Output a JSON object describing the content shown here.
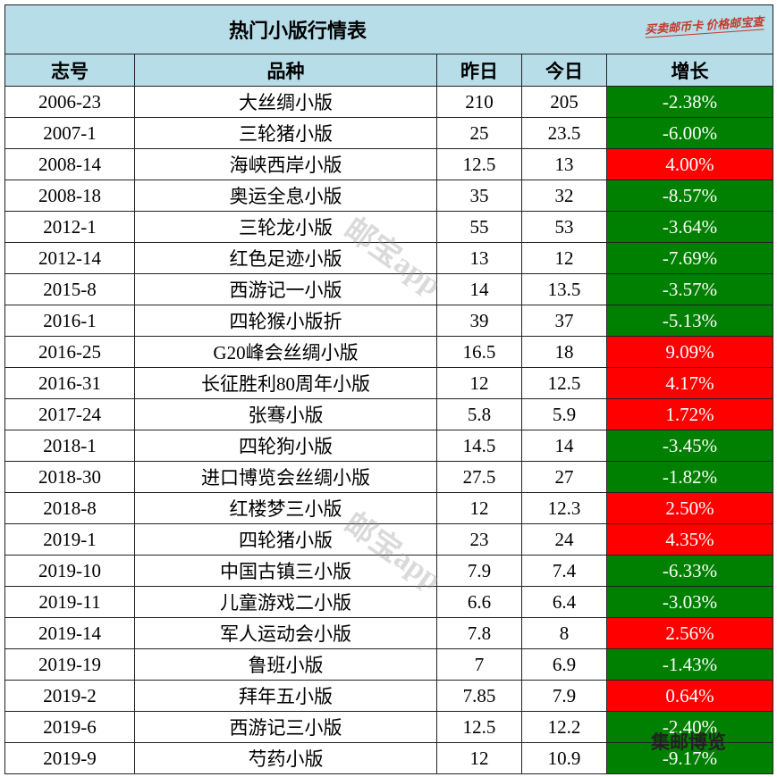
{
  "header": {
    "title": "热门小版行情表",
    "stamp": "买卖邮币卡 价格邮宝查"
  },
  "table": {
    "columns": [
      "志号",
      "品种",
      "昨日",
      "今日",
      "增长"
    ],
    "rows": [
      [
        "2006-23",
        "大丝绸小版",
        "210",
        "205",
        "-2.38%"
      ],
      [
        "2007-1",
        "三轮猪小版",
        "25",
        "23.5",
        "-6.00%"
      ],
      [
        "2008-14",
        "海峡西岸小版",
        "12.5",
        "13",
        "4.00%"
      ],
      [
        "2008-18",
        "奥运全息小版",
        "35",
        "32",
        "-8.57%"
      ],
      [
        "2012-1",
        "三轮龙小版",
        "55",
        "53",
        "-3.64%"
      ],
      [
        "2012-14",
        "红色足迹小版",
        "13",
        "12",
        "-7.69%"
      ],
      [
        "2015-8",
        "西游记一小版",
        "14",
        "13.5",
        "-3.57%"
      ],
      [
        "2016-1",
        "四轮猴小版折",
        "39",
        "37",
        "-5.13%"
      ],
      [
        "2016-25",
        "G20峰会丝绸小版",
        "16.5",
        "18",
        "9.09%"
      ],
      [
        "2016-31",
        "长征胜利80周年小版",
        "12",
        "12.5",
        "4.17%"
      ],
      [
        "2017-24",
        "张骞小版",
        "5.8",
        "5.9",
        "1.72%"
      ],
      [
        "2018-1",
        "四轮狗小版",
        "14.5",
        "14",
        "-3.45%"
      ],
      [
        "2018-30",
        "进口博览会丝绸小版",
        "27.5",
        "27",
        "-1.82%"
      ],
      [
        "2018-8",
        "红楼梦三小版",
        "12",
        "12.3",
        "2.50%"
      ],
      [
        "2019-1",
        "四轮猪小版",
        "23",
        "24",
        "4.35%"
      ],
      [
        "2019-10",
        "中国古镇三小版",
        "7.9",
        "7.4",
        "-6.33%"
      ],
      [
        "2019-11",
        "儿童游戏二小版",
        "6.6",
        "6.4",
        "-3.03%"
      ],
      [
        "2019-14",
        "军人运动会小版",
        "7.8",
        "8",
        "2.56%"
      ],
      [
        "2019-19",
        "鲁班小版",
        "7",
        "6.9",
        "-1.43%"
      ],
      [
        "2019-2",
        "拜年五小版",
        "7.85",
        "7.9",
        "0.64%"
      ],
      [
        "2019-6",
        "西游记三小版",
        "12.5",
        "12.2",
        "-2.40%"
      ],
      [
        "2019-9",
        "芍药小版",
        "12",
        "10.9",
        "-9.17%"
      ]
    ]
  },
  "watermarks": [
    "邮宝app",
    "邮宝app",
    "集邮博览"
  ]
}
